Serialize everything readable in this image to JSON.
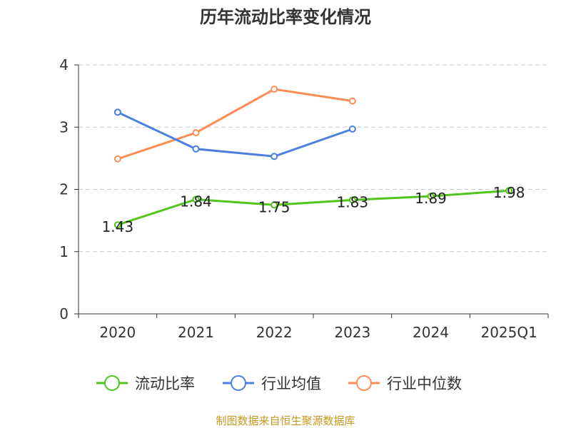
{
  "chart_data": {
    "type": "line",
    "title": "历年流动比率变化情况",
    "categories": [
      "2020",
      "2021",
      "2022",
      "2023",
      "2024",
      "2025Q1"
    ],
    "ylim": [
      0,
      4
    ],
    "yticks": [
      "0",
      "1",
      "2",
      "3",
      "4"
    ],
    "grid": true,
    "legend_position": "bottom",
    "series": [
      {
        "name": "流动比率",
        "color": "#52c41a",
        "values": [
          1.43,
          1.84,
          1.75,
          1.83,
          1.89,
          1.98
        ],
        "labels": [
          "1.43",
          "1.84",
          "1.75",
          "1.83",
          "1.89",
          "1.98"
        ]
      },
      {
        "name": "行业均值",
        "color": "#4a7fe0",
        "values": [
          3.24,
          2.65,
          2.53,
          2.97,
          null,
          null
        ]
      },
      {
        "name": "行业中位数",
        "color": "#ff8c55",
        "values": [
          2.49,
          2.91,
          3.61,
          3.42,
          null,
          null
        ]
      }
    ]
  },
  "source": "制图数据来自恒生聚源数据库",
  "source_color": "#c8961e"
}
